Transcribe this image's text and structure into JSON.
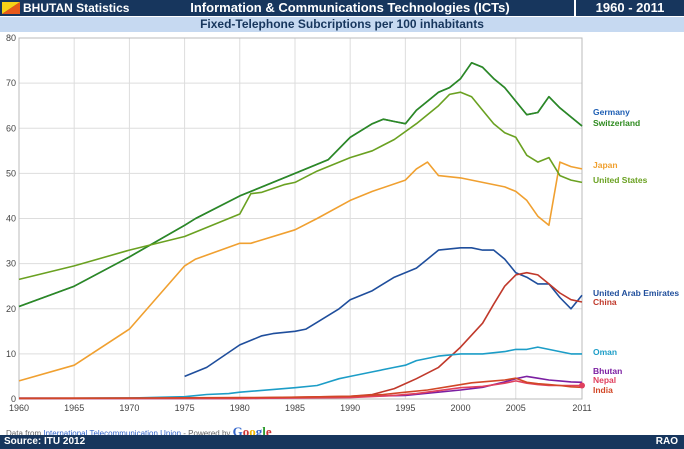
{
  "header": {
    "brand": "BHUTAN Statistics",
    "title": "Information & Communications Technologies (ICTs)",
    "years": "1960 - 2011",
    "subtitle": "Fixed-Telephone Subcriptions per 100 inhabitants",
    "flag_icon": "bhutan-flag-icon"
  },
  "credit": {
    "prefix": "Data from ",
    "link": "International Telecommunication Union",
    "mid": " - Powered by ",
    "google": "Google"
  },
  "footer": {
    "source": "Source: ITU 2012",
    "rao": "RAO"
  },
  "colors": {
    "header_bg": "#17365d",
    "subtitle_bg": "#c6d9f1",
    "grid": "#dddddd"
  },
  "chart_data": {
    "type": "line",
    "title": "Fixed-Telephone Subcriptions per 100 inhabitants",
    "xlim": [
      1960,
      2011
    ],
    "ylim": [
      0,
      80
    ],
    "xticks": [
      1960,
      1965,
      1970,
      1975,
      1980,
      1985,
      1990,
      1995,
      2000,
      2005,
      2011
    ],
    "yticks": [
      0,
      10,
      20,
      30,
      40,
      50,
      60,
      70,
      80
    ],
    "grid": true,
    "legend": "right end labels",
    "series": [
      {
        "name": "Germany",
        "color": "#1f5fb4",
        "data": [
          [
            1960,
            20.5
          ],
          [
            1965,
            25
          ],
          [
            1970,
            31.5
          ],
          [
            1975,
            38.5
          ],
          [
            1976,
            40
          ],
          [
            1980,
            45
          ],
          [
            1985,
            50
          ],
          [
            1988,
            53
          ],
          [
            1990,
            58
          ],
          [
            1992,
            61
          ],
          [
            1993,
            62
          ],
          [
            1994,
            61.5
          ],
          [
            1995,
            61
          ],
          [
            1996,
            64
          ],
          [
            1997,
            66
          ],
          [
            1998,
            68
          ],
          [
            1999,
            69
          ],
          [
            2000,
            71
          ],
          [
            2001,
            74.5
          ],
          [
            2002,
            73.5
          ],
          [
            2003,
            71
          ],
          [
            2004,
            69
          ],
          [
            2005,
            66
          ],
          [
            2006,
            63
          ],
          [
            2007,
            63.5
          ],
          [
            2008,
            67
          ],
          [
            2009,
            64.5
          ],
          [
            2010,
            62.5
          ],
          [
            2011,
            60.5
          ]
        ]
      },
      {
        "name": "Switzerland",
        "color": "#2e8b1f",
        "data": [
          [
            1960,
            20.5
          ],
          [
            1965,
            25
          ],
          [
            1970,
            31.5
          ],
          [
            1975,
            38.5
          ],
          [
            1976,
            40
          ],
          [
            1980,
            45
          ],
          [
            1985,
            50
          ],
          [
            1988,
            53
          ],
          [
            1990,
            58
          ],
          [
            1992,
            61
          ],
          [
            1993,
            62
          ],
          [
            1994,
            61.5
          ],
          [
            1995,
            61
          ],
          [
            1996,
            64
          ],
          [
            1997,
            66
          ],
          [
            1998,
            68
          ],
          [
            1999,
            69
          ],
          [
            2000,
            71
          ],
          [
            2001,
            74.5
          ],
          [
            2002,
            73.5
          ],
          [
            2003,
            71
          ],
          [
            2004,
            69
          ],
          [
            2005,
            66
          ],
          [
            2006,
            63
          ],
          [
            2007,
            63.5
          ],
          [
            2008,
            67
          ],
          [
            2009,
            64.5
          ],
          [
            2010,
            62.5
          ],
          [
            2011,
            60.5
          ]
        ]
      },
      {
        "name": "Japan",
        "color": "#f0a030",
        "data": [
          [
            1960,
            4
          ],
          [
            1965,
            7.5
          ],
          [
            1970,
            15.5
          ],
          [
            1975,
            29.5
          ],
          [
            1976,
            31
          ],
          [
            1980,
            34.5
          ],
          [
            1981,
            34.5
          ],
          [
            1985,
            37.5
          ],
          [
            1987,
            40
          ],
          [
            1990,
            44
          ],
          [
            1992,
            46
          ],
          [
            1995,
            48.5
          ],
          [
            1996,
            51
          ],
          [
            1997,
            52.5
          ],
          [
            1998,
            49.5
          ],
          [
            2000,
            49
          ],
          [
            2002,
            48
          ],
          [
            2004,
            47
          ],
          [
            2005,
            46
          ],
          [
            2006,
            44
          ],
          [
            2007,
            40.5
          ],
          [
            2008,
            38.5
          ],
          [
            2009,
            52.5
          ],
          [
            2010,
            51.5
          ],
          [
            2011,
            51
          ]
        ]
      },
      {
        "name": "United States",
        "color": "#6aa121",
        "data": [
          [
            1960,
            26.5
          ],
          [
            1965,
            29.5
          ],
          [
            1970,
            33
          ],
          [
            1975,
            36
          ],
          [
            1980,
            41
          ],
          [
            1981,
            45.5
          ],
          [
            1982,
            45.8
          ],
          [
            1984,
            47.5
          ],
          [
            1985,
            48
          ],
          [
            1987,
            50.5
          ],
          [
            1990,
            53.5
          ],
          [
            1992,
            55
          ],
          [
            1994,
            57.5
          ],
          [
            1996,
            61
          ],
          [
            1998,
            65
          ],
          [
            1999,
            67.5
          ],
          [
            2000,
            68
          ],
          [
            2001,
            67
          ],
          [
            2002,
            64
          ],
          [
            2003,
            61
          ],
          [
            2004,
            59
          ],
          [
            2005,
            58
          ],
          [
            2006,
            54
          ],
          [
            2007,
            52.5
          ],
          [
            2008,
            53.5
          ],
          [
            2009,
            49.5
          ],
          [
            2010,
            48.5
          ],
          [
            2011,
            48
          ]
        ]
      },
      {
        "name": "United Arab Emirates",
        "color": "#1f4e9c",
        "data": [
          [
            1975,
            5
          ],
          [
            1977,
            7
          ],
          [
            1980,
            12
          ],
          [
            1982,
            14
          ],
          [
            1983,
            14.5
          ],
          [
            1985,
            15
          ],
          [
            1986,
            15.5
          ],
          [
            1987,
            17
          ],
          [
            1989,
            20
          ],
          [
            1990,
            22
          ],
          [
            1992,
            24
          ],
          [
            1994,
            27
          ],
          [
            1996,
            29
          ],
          [
            1997,
            31
          ],
          [
            1998,
            33
          ],
          [
            2000,
            33.5
          ],
          [
            2001,
            33.5
          ],
          [
            2002,
            33
          ],
          [
            2003,
            33
          ],
          [
            2004,
            31
          ],
          [
            2005,
            28
          ],
          [
            2006,
            27
          ],
          [
            2007,
            25.5
          ],
          [
            2008,
            25.5
          ],
          [
            2009,
            22.5
          ],
          [
            2010,
            20
          ],
          [
            2011,
            23
          ]
        ]
      },
      {
        "name": "China",
        "color": "#c0392b",
        "data": [
          [
            1960,
            0.2
          ],
          [
            1980,
            0.2
          ],
          [
            1990,
            0.6
          ],
          [
            1992,
            1
          ],
          [
            1994,
            2.3
          ],
          [
            1996,
            4.5
          ],
          [
            1998,
            7
          ],
          [
            2000,
            11.5
          ],
          [
            2002,
            16.8
          ],
          [
            2003,
            21
          ],
          [
            2004,
            25
          ],
          [
            2005,
            27.5
          ],
          [
            2006,
            28
          ],
          [
            2007,
            27.5
          ],
          [
            2008,
            25.5
          ],
          [
            2009,
            23.5
          ],
          [
            2010,
            22
          ],
          [
            2011,
            21.5
          ]
        ]
      },
      {
        "name": "Oman",
        "color": "#1c9dc7",
        "data": [
          [
            1960,
            0.1
          ],
          [
            1970,
            0.2
          ],
          [
            1975,
            0.5
          ],
          [
            1977,
            1
          ],
          [
            1979,
            1.2
          ],
          [
            1980,
            1.5
          ],
          [
            1985,
            2.5
          ],
          [
            1987,
            3
          ],
          [
            1989,
            4.5
          ],
          [
            1990,
            5
          ],
          [
            1992,
            6
          ],
          [
            1994,
            7
          ],
          [
            1995,
            7.5
          ],
          [
            1996,
            8.5
          ],
          [
            1998,
            9.5
          ],
          [
            2000,
            10
          ],
          [
            2002,
            10
          ],
          [
            2004,
            10.5
          ],
          [
            2005,
            11
          ],
          [
            2006,
            11
          ],
          [
            2007,
            11.5
          ],
          [
            2008,
            11
          ],
          [
            2009,
            10.5
          ],
          [
            2010,
            10
          ],
          [
            2011,
            10
          ]
        ]
      },
      {
        "name": "Bhutan",
        "color": "#7b1fa2",
        "data": [
          [
            1960,
            0.1
          ],
          [
            1980,
            0.1
          ],
          [
            1990,
            0.5
          ],
          [
            1995,
            0.8
          ],
          [
            2000,
            2
          ],
          [
            2002,
            2.6
          ],
          [
            2004,
            3.8
          ],
          [
            2005,
            4.5
          ],
          [
            2006,
            5
          ],
          [
            2007,
            4.6
          ],
          [
            2008,
            4.2
          ],
          [
            2009,
            4
          ],
          [
            2010,
            3.8
          ],
          [
            2011,
            3.7
          ]
        ]
      },
      {
        "name": "Nepal",
        "color": "#e0405e",
        "data": [
          [
            1960,
            0.1
          ],
          [
            1980,
            0.1
          ],
          [
            1990,
            0.3
          ],
          [
            1994,
            0.8
          ],
          [
            1996,
            1.2
          ],
          [
            2000,
            2.5
          ],
          [
            2002,
            2.8
          ],
          [
            2004,
            3.5
          ],
          [
            2005,
            4
          ],
          [
            2006,
            3.5
          ],
          [
            2007,
            3.2
          ],
          [
            2008,
            3
          ],
          [
            2009,
            3
          ],
          [
            2010,
            3
          ],
          [
            2011,
            3
          ]
        ]
      },
      {
        "name": "India",
        "color": "#d24726",
        "data": [
          [
            1960,
            0.1
          ],
          [
            1980,
            0.3
          ],
          [
            1985,
            0.4
          ],
          [
            1990,
            0.6
          ],
          [
            1993,
            1
          ],
          [
            1995,
            1.5
          ],
          [
            1997,
            2
          ],
          [
            1999,
            2.8
          ],
          [
            2001,
            3.6
          ],
          [
            2003,
            4
          ],
          [
            2004,
            4.2
          ],
          [
            2005,
            4.6
          ],
          [
            2006,
            3.7
          ],
          [
            2007,
            3.4
          ],
          [
            2008,
            3.2
          ],
          [
            2009,
            3
          ],
          [
            2010,
            2.7
          ],
          [
            2011,
            2.6
          ]
        ]
      }
    ]
  }
}
